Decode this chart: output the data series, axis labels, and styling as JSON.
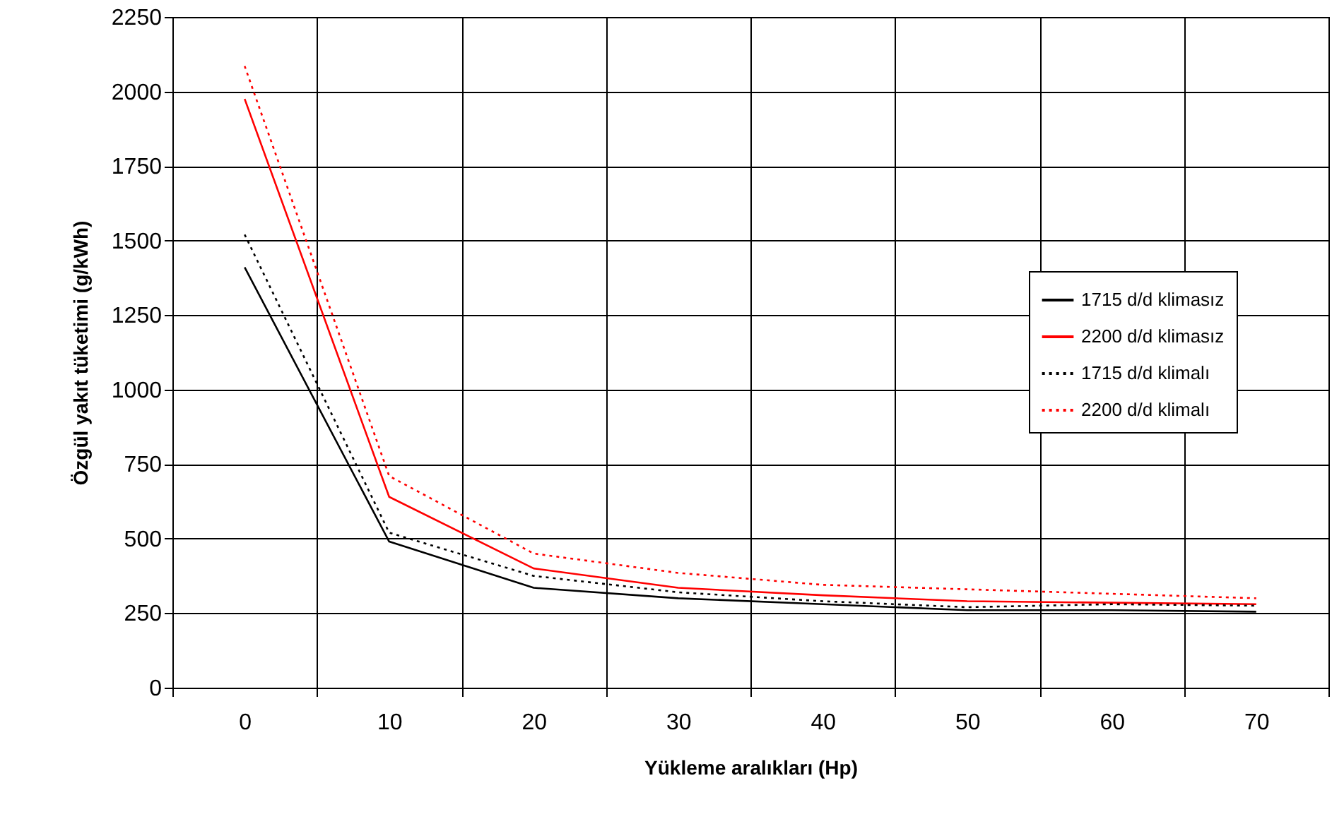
{
  "chart_data": {
    "type": "line",
    "xlabel": "Yükleme aralıkları (Hp)",
    "ylabel": "Özgül yakıt tüketimi (g/kWh)",
    "categories": [
      "0",
      "10",
      "20",
      "30",
      "40",
      "50",
      "60",
      "70"
    ],
    "series": [
      {
        "name": "1715 d/d klimasız",
        "color": "#000000",
        "line_style": "solid",
        "values": [
          1410,
          490,
          335,
          300,
          280,
          260,
          260,
          255
        ]
      },
      {
        "name": "2200 d/d klimasız",
        "color": "#ff0000",
        "line_style": "solid",
        "values": [
          1975,
          640,
          400,
          335,
          310,
          290,
          285,
          280
        ]
      },
      {
        "name": "1715 d/d klimalı",
        "color": "#000000",
        "line_style": "dotted",
        "values": [
          1520,
          520,
          375,
          320,
          290,
          270,
          280,
          275
        ]
      },
      {
        "name": "2200 d/d klimalı",
        "color": "#ff0000",
        "line_style": "dotted",
        "values": [
          2085,
          710,
          450,
          385,
          345,
          330,
          315,
          300
        ]
      }
    ],
    "ylim": [
      0,
      2250
    ],
    "yticks": [
      0,
      250,
      500,
      750,
      1000,
      1250,
      1500,
      1750,
      2000,
      2250
    ],
    "grid": true,
    "legend": "right",
    "marker": "none"
  }
}
